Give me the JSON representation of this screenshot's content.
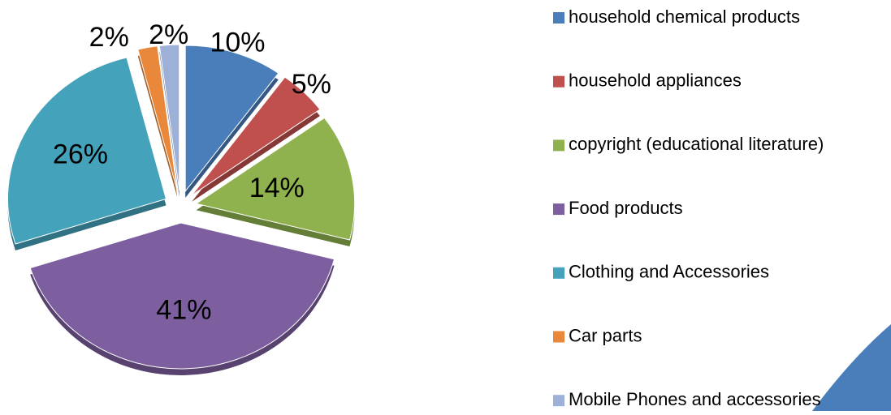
{
  "chart_data": {
    "type": "pie",
    "categories": [
      "household chemical products",
      "household appliances",
      "copyright (educational literature)",
      "Food products",
      "Clothing and Accessories",
      "Car parts",
      "Mobile Phones and accessories"
    ],
    "values": [
      10,
      5,
      14,
      41,
      26,
      2,
      2
    ],
    "value_labels": [
      "10%",
      "5%",
      "14%",
      "41%",
      "26%",
      "2%",
      "2%"
    ],
    "colors": [
      "#4a7ebb",
      "#c0504d",
      "#8fb24f",
      "#7d5fa0",
      "#45a2bb",
      "#e9883a",
      "#9cb0d8"
    ],
    "legend": "right"
  }
}
